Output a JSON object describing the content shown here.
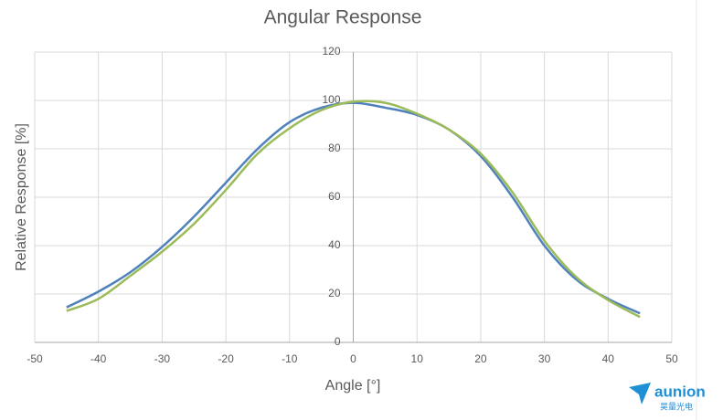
{
  "chart_data": {
    "type": "line",
    "title": "Angular Response",
    "x_label": "Angle [°]",
    "y_label": "Relative Response [%]",
    "x": [
      -45,
      -40,
      -35,
      -30,
      -25,
      -20,
      -15,
      -10,
      -5,
      0,
      5,
      10,
      15,
      20,
      25,
      30,
      35,
      40,
      45
    ],
    "series": [
      {
        "color": "#4f81bd",
        "values": [
          14.5,
          21,
          29,
          39.5,
          52,
          66,
          80,
          91,
          97,
          99,
          97,
          94,
          88,
          77,
          60,
          40,
          26,
          18,
          12
        ]
      },
      {
        "color": "#9bbb59",
        "values": [
          13,
          18,
          27.5,
          37.5,
          49,
          63,
          78,
          88.5,
          96,
          99.5,
          99,
          94.5,
          88,
          78,
          62,
          42,
          27,
          17.5,
          10.5
        ]
      }
    ],
    "xlim": [
      -50,
      50
    ],
    "xticks": [
      -50,
      -40,
      -30,
      -20,
      -10,
      0,
      10,
      20,
      30,
      40,
      50
    ],
    "ylim": [
      0,
      120
    ],
    "yticks": [
      0,
      20,
      40,
      60,
      80,
      100,
      120
    ],
    "grid": true
  },
  "logo": {
    "name": "aunion",
    "subtitle": "昊量光电"
  }
}
